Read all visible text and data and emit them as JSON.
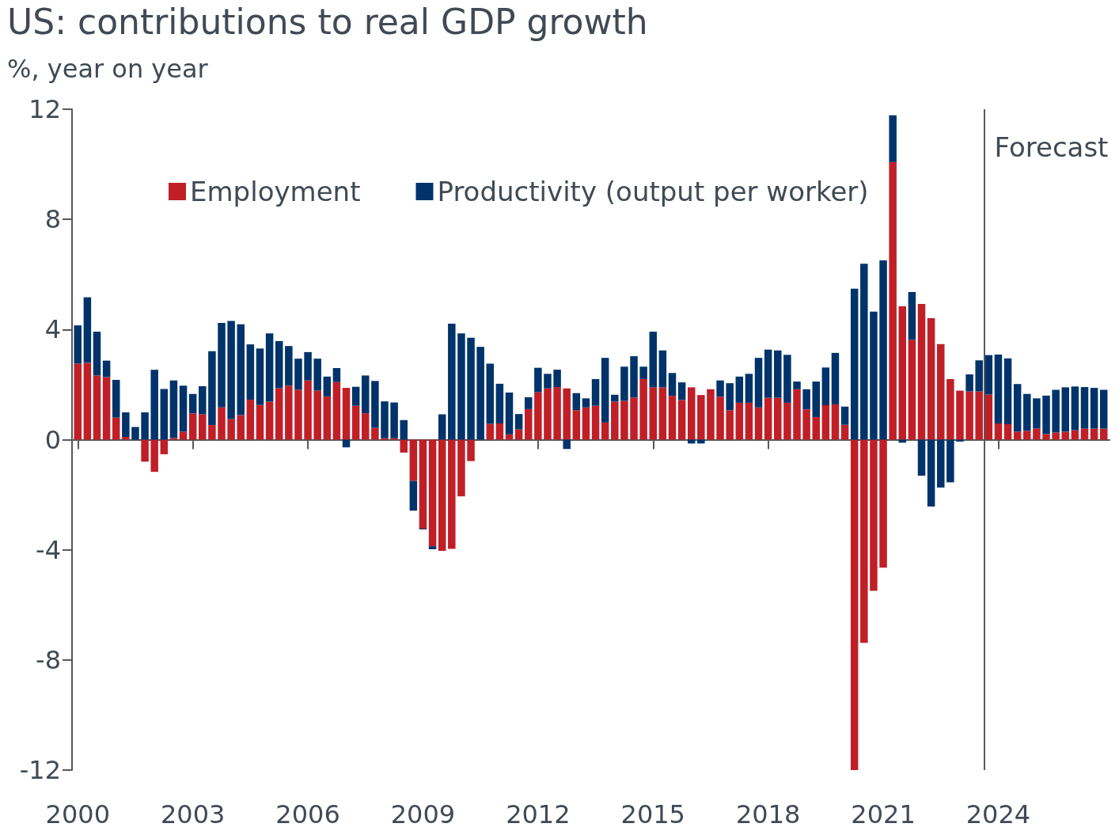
{
  "chart_data": {
    "type": "bar",
    "title": "US: contributions to real GDP growth",
    "subtitle": "%, year on year",
    "stacked": true,
    "x": [
      2000,
      2000.25,
      2000.5,
      2000.75,
      2001,
      2001.25,
      2001.5,
      2001.75,
      2002,
      2002.25,
      2002.5,
      2002.75,
      2003,
      2003.25,
      2003.5,
      2003.75,
      2004,
      2004.25,
      2004.5,
      2004.75,
      2005,
      2005.25,
      2005.5,
      2005.75,
      2006,
      2006.25,
      2006.5,
      2006.75,
      2007,
      2007.25,
      2007.5,
      2007.75,
      2008,
      2008.25,
      2008.5,
      2008.75,
      2009,
      2009.25,
      2009.5,
      2009.75,
      2010,
      2010.25,
      2010.5,
      2010.75,
      2011,
      2011.25,
      2011.5,
      2011.75,
      2012,
      2012.25,
      2012.5,
      2012.75,
      2013,
      2013.25,
      2013.5,
      2013.75,
      2014,
      2014.25,
      2014.5,
      2014.75,
      2015,
      2015.25,
      2015.5,
      2015.75,
      2016,
      2016.25,
      2016.5,
      2016.75,
      2017,
      2017.25,
      2017.5,
      2017.75,
      2018,
      2018.25,
      2018.5,
      2018.75,
      2019,
      2019.25,
      2019.5,
      2019.75,
      2020,
      2020.25,
      2020.5,
      2020.75,
      2021,
      2021.25,
      2021.5,
      2021.75,
      2022,
      2022.25,
      2022.5,
      2022.75,
      2023,
      2023.25,
      2023.5,
      2023.75,
      2024,
      2024.25,
      2024.5,
      2024.75,
      2025,
      2025.25,
      2025.5,
      2025.75,
      2026,
      2026.25,
      2026.5,
      2026.75
    ],
    "series": [
      {
        "name": "Employment",
        "color": "#c01f27",
        "values": [
          2.76,
          2.79,
          2.33,
          2.27,
          0.8,
          0.1,
          0,
          -0.8,
          -1.17,
          -0.53,
          0.06,
          0.29,
          0.95,
          0.92,
          0.53,
          1.17,
          0.75,
          0.89,
          1.45,
          1.26,
          1.38,
          1.87,
          1.96,
          1.81,
          2.15,
          1.78,
          1.57,
          2.09,
          1.88,
          1.23,
          0.96,
          0.43,
          0.05,
          0.05,
          -0.47,
          -1.5,
          -3.23,
          -3.87,
          -4.04,
          -3.97,
          -2.06,
          -0.78,
          0,
          0.57,
          0.59,
          0.19,
          0.37,
          1.11,
          1.72,
          1.86,
          1.91,
          1.86,
          1.07,
          1.17,
          1.23,
          0.62,
          1.38,
          1.41,
          1.53,
          2.2,
          1.9,
          1.9,
          1.59,
          1.44,
          1.9,
          1.62,
          1.83,
          1.56,
          1.07,
          1.34,
          1.34,
          1.17,
          1.52,
          1.52,
          1.34,
          1.83,
          1.1,
          0.82,
          1.25,
          1.28,
          0.54,
          -12,
          -7.38,
          -5.49,
          -4.65,
          10.08,
          4.84,
          3.62,
          4.93,
          4.41,
          3.47,
          2.2,
          1.78,
          1.75,
          1.75,
          1.64,
          0.59,
          0.56,
          0.29,
          0.32,
          0.4,
          0.2,
          0.26,
          0.29,
          0.34,
          0.4,
          0.4,
          0.4
        ]
      },
      {
        "name": "Productivity (output per worker)",
        "color": "#00336a",
        "values": [
          1.39,
          2.38,
          1.59,
          0.6,
          1.37,
          0.89,
          0.46,
          0.99,
          2.54,
          1.84,
          2.09,
          1.67,
          0.71,
          1.02,
          2.68,
          3.07,
          3.56,
          3.3,
          2.01,
          2.05,
          2.48,
          1.71,
          1.44,
          1.13,
          1.03,
          1.16,
          0.72,
          0.51,
          -0.28,
          0.69,
          1.37,
          1.7,
          1.34,
          1.3,
          0.71,
          -1.08,
          -0.03,
          -0.11,
          0.92,
          4.21,
          3.86,
          3.7,
          3.37,
          2.19,
          1.44,
          1.52,
          0.56,
          0.43,
          0.89,
          0.53,
          0.63,
          -0.34,
          0.62,
          0.33,
          0.97,
          2.35,
          0.25,
          1.24,
          1.5,
          0.45,
          2.02,
          1.34,
          0.83,
          0.64,
          -0.14,
          -0.14,
          0,
          0.59,
          0.98,
          0.95,
          1.05,
          1.8,
          1.75,
          1.72,
          1.74,
          0.28,
          0.73,
          1.29,
          1.37,
          1.87,
          0.66,
          5.48,
          6.39,
          4.65,
          6.51,
          1.7,
          -0.11,
          1.74,
          -1.31,
          -2.43,
          -1.74,
          -1.55,
          -0.07,
          0.62,
          1.13,
          1.43,
          2.5,
          2.39,
          1.73,
          1.34,
          1.1,
          1.4,
          1.55,
          1.61,
          1.59,
          1.51,
          1.48,
          1.41
        ]
      }
    ],
    "xlim": [
      1999.85,
      2026.9
    ],
    "xticks": [
      2000,
      2003,
      2006,
      2009,
      2012,
      2015,
      2018,
      2021,
      2024
    ],
    "ylim": [
      -12,
      12
    ],
    "yticks": [
      -12,
      -8,
      -4,
      0,
      4,
      8,
      12
    ],
    "ref_lines": [
      {
        "axis": "x",
        "value": 2023.625,
        "label": "Forecast",
        "color": "#595959"
      }
    ],
    "legend": "top left"
  }
}
